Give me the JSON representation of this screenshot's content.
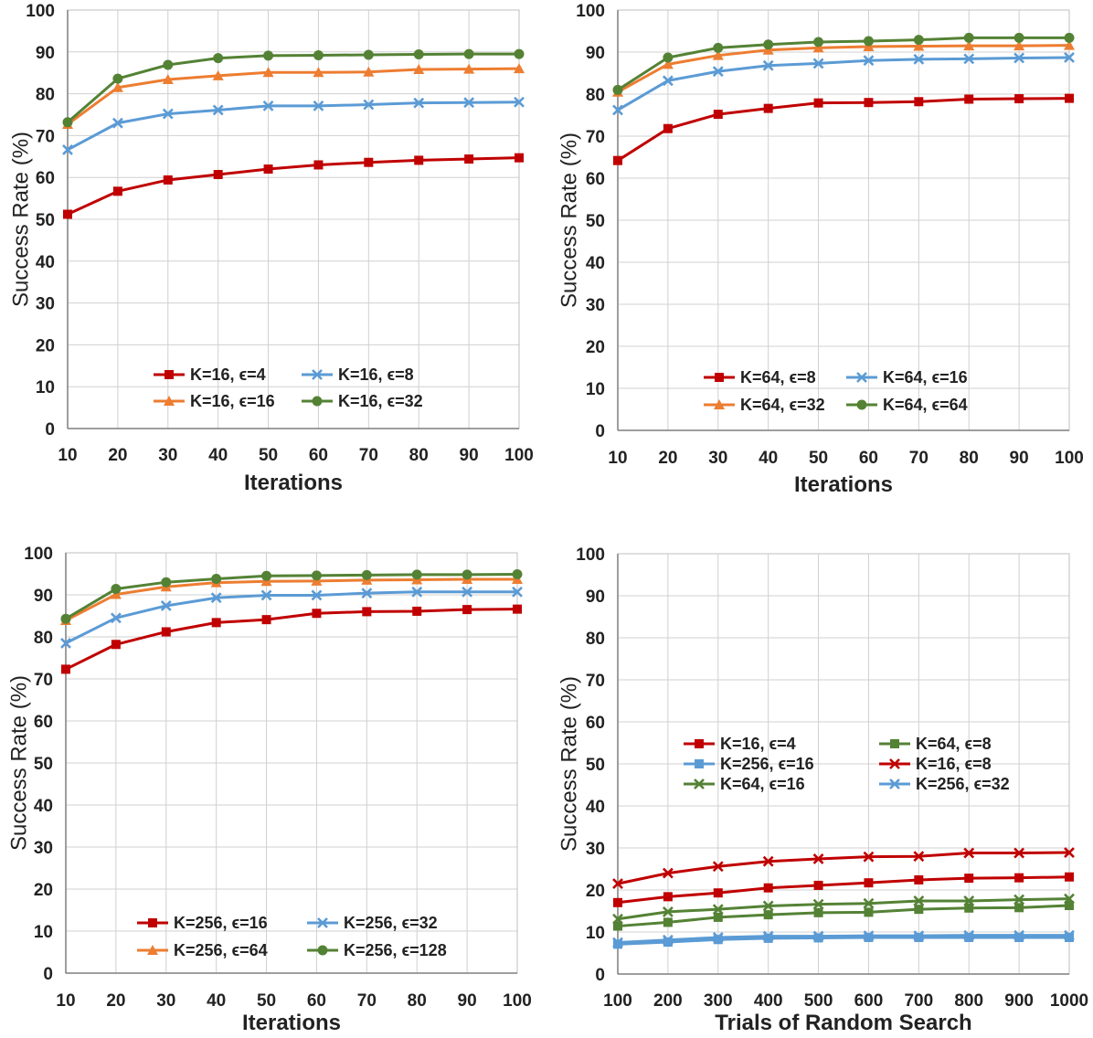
{
  "chart_data": [
    {
      "type": "line",
      "title": "",
      "xlabel": "Iterations",
      "ylabel": "Success Rate (%)",
      "x": [
        10,
        20,
        30,
        40,
        50,
        60,
        70,
        80,
        90,
        100
      ],
      "xlim": [
        10,
        100
      ],
      "ylim": [
        0,
        100
      ],
      "yticks": [
        0,
        10,
        20,
        30,
        40,
        50,
        60,
        70,
        80,
        90,
        100
      ],
      "grid": true,
      "legend_position": "bottom-center",
      "legend_columns": 2,
      "series": [
        {
          "name": "K=16, ϵ=4",
          "color": "#c00000",
          "marker": "square",
          "values": [
            51.2,
            56.7,
            59.4,
            60.7,
            62.0,
            63.0,
            63.6,
            64.1,
            64.4,
            64.7
          ]
        },
        {
          "name": "K=16, ϵ=8",
          "color": "#5b9bd5",
          "marker": "x",
          "values": [
            66.6,
            73.0,
            75.2,
            76.1,
            77.1,
            77.1,
            77.4,
            77.8,
            77.9,
            78.0
          ]
        },
        {
          "name": "K=16, ϵ=16",
          "color": "#ed7d31",
          "marker": "triangle",
          "values": [
            72.7,
            81.5,
            83.4,
            84.3,
            85.1,
            85.1,
            85.2,
            85.8,
            85.9,
            86.0
          ]
        },
        {
          "name": "K=16, ϵ=32",
          "color": "#548235",
          "marker": "circle",
          "values": [
            73.2,
            83.6,
            86.9,
            88.5,
            89.1,
            89.2,
            89.3,
            89.4,
            89.5,
            89.5
          ]
        }
      ]
    },
    {
      "type": "line",
      "title": "",
      "xlabel": "Iterations",
      "ylabel": "Success Rate (%)",
      "x": [
        10,
        20,
        30,
        40,
        50,
        60,
        70,
        80,
        90,
        100
      ],
      "xlim": [
        10,
        100
      ],
      "ylim": [
        0,
        100
      ],
      "yticks": [
        0,
        10,
        20,
        30,
        40,
        50,
        60,
        70,
        80,
        90,
        100
      ],
      "grid": true,
      "legend_position": "bottom-center",
      "legend_columns": 2,
      "series": [
        {
          "name": "K=64, ϵ=8",
          "color": "#c00000",
          "marker": "square",
          "values": [
            64.2,
            71.8,
            75.2,
            76.6,
            77.9,
            78.0,
            78.2,
            78.8,
            78.9,
            79.0
          ]
        },
        {
          "name": "K=64, ϵ=16",
          "color": "#5b9bd5",
          "marker": "x",
          "values": [
            76.2,
            83.2,
            85.4,
            86.8,
            87.3,
            88.0,
            88.3,
            88.4,
            88.6,
            88.7
          ]
        },
        {
          "name": "K=64, ϵ=32",
          "color": "#ed7d31",
          "marker": "triangle",
          "values": [
            80.5,
            87.1,
            89.2,
            90.5,
            91.0,
            91.3,
            91.4,
            91.5,
            91.5,
            91.6
          ]
        },
        {
          "name": "K=64, ϵ=64",
          "color": "#548235",
          "marker": "circle",
          "values": [
            81.0,
            88.7,
            91.0,
            91.8,
            92.4,
            92.6,
            92.9,
            93.4,
            93.4,
            93.4
          ]
        }
      ]
    },
    {
      "type": "line",
      "title": "",
      "xlabel": "Iterations",
      "ylabel": "Success Rate (%)",
      "x": [
        10,
        20,
        30,
        40,
        50,
        60,
        70,
        80,
        90,
        100
      ],
      "xlim": [
        10,
        100
      ],
      "ylim": [
        0,
        100
      ],
      "yticks": [
        0,
        10,
        20,
        30,
        40,
        50,
        60,
        70,
        80,
        90,
        100
      ],
      "grid": true,
      "legend_position": "bottom-center",
      "legend_columns": 2,
      "series": [
        {
          "name": "K=256, ϵ=16",
          "color": "#c00000",
          "marker": "square",
          "values": [
            72.3,
            78.2,
            81.2,
            83.4,
            84.1,
            85.6,
            86.0,
            86.1,
            86.5,
            86.6
          ]
        },
        {
          "name": "K=256, ϵ=32",
          "color": "#5b9bd5",
          "marker": "x",
          "values": [
            78.5,
            84.5,
            87.4,
            89.3,
            89.9,
            89.9,
            90.4,
            90.7,
            90.7,
            90.7
          ]
        },
        {
          "name": "K=256, ϵ=64",
          "color": "#ed7d31",
          "marker": "triangle",
          "values": [
            83.9,
            90.1,
            91.9,
            92.9,
            93.2,
            93.3,
            93.5,
            93.6,
            93.7,
            93.7
          ]
        },
        {
          "name": "K=256, ϵ=128",
          "color": "#548235",
          "marker": "circle",
          "values": [
            84.3,
            91.4,
            93.0,
            93.8,
            94.5,
            94.6,
            94.7,
            94.8,
            94.8,
            94.9
          ]
        }
      ]
    },
    {
      "type": "line",
      "title": "",
      "xlabel": "Trials of Random Search",
      "ylabel": "Success Rate (%)",
      "x": [
        100,
        200,
        300,
        400,
        500,
        600,
        700,
        800,
        900,
        1000
      ],
      "xlim": [
        100,
        1000
      ],
      "ylim": [
        0,
        100
      ],
      "yticks": [
        0,
        10,
        20,
        30,
        40,
        50,
        60,
        70,
        80,
        90,
        100
      ],
      "grid": true,
      "legend_position": "middle-center",
      "legend_columns": 2,
      "series": [
        {
          "name": "K=16, ϵ=4",
          "color": "#c00000",
          "marker": "square",
          "values": [
            17.0,
            18.4,
            19.3,
            20.5,
            21.1,
            21.7,
            22.4,
            22.8,
            22.9,
            23.1
          ]
        },
        {
          "name": "K=64, ϵ=8",
          "color": "#548235",
          "marker": "square",
          "values": [
            11.4,
            12.3,
            13.5,
            14.1,
            14.6,
            14.7,
            15.4,
            15.7,
            15.8,
            16.3
          ]
        },
        {
          "name": "K=256, ϵ=16",
          "color": "#5b9bd5",
          "marker": "square",
          "values": [
            7.1,
            7.6,
            8.2,
            8.5,
            8.6,
            8.7,
            8.7,
            8.7,
            8.7,
            8.7
          ]
        },
        {
          "name": "K=16, ϵ=8",
          "color": "#c00000",
          "marker": "x",
          "values": [
            21.5,
            24.0,
            25.6,
            26.8,
            27.4,
            27.9,
            28.0,
            28.8,
            28.8,
            28.9
          ]
        },
        {
          "name": "K=64, ϵ=16",
          "color": "#548235",
          "marker": "x",
          "values": [
            13.1,
            14.8,
            15.4,
            16.2,
            16.6,
            16.8,
            17.4,
            17.4,
            17.7,
            17.9
          ]
        },
        {
          "name": "K=256, ϵ=32",
          "color": "#5b9bd5",
          "marker": "x",
          "values": [
            7.5,
            8.1,
            8.7,
            9.0,
            9.0,
            9.1,
            9.1,
            9.2,
            9.2,
            9.2
          ]
        }
      ]
    }
  ]
}
